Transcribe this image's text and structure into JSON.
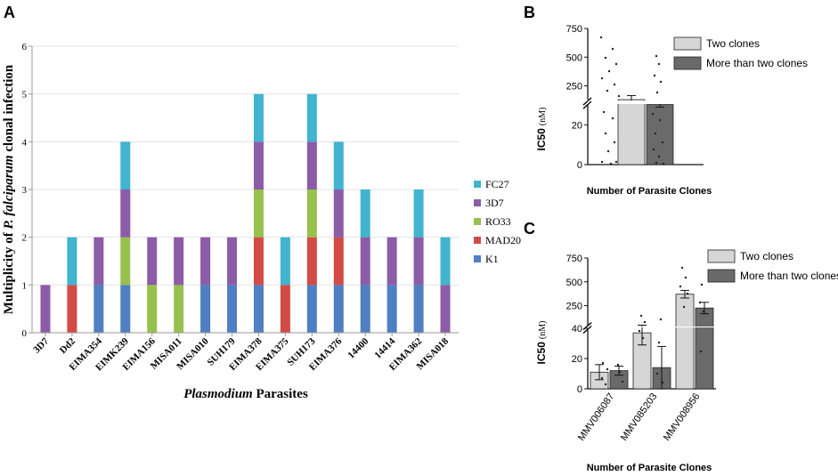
{
  "colors": {
    "K1": "#4f7fc3",
    "MAD20": "#d24b45",
    "RO33": "#98c04f",
    "3D7": "#8c5ca8",
    "FC27": "#41b4ce",
    "two_clones": "#d6d6d6",
    "more_clones": "#6a6a6a"
  },
  "chart_data": [
    {
      "panel": "A",
      "type": "bar",
      "stacked": true,
      "ylabel_parts": [
        "Multiplicity of ",
        "P. falciparum",
        " clonal infection"
      ],
      "xlabel_parts": [
        "Plasmodium",
        " Parasites"
      ],
      "ylim": [
        0,
        6
      ],
      "yticks": [
        "0",
        "1",
        "2",
        "3",
        "4",
        "5",
        "6"
      ],
      "categories": [
        "3D7",
        "Dd2",
        "EIMA354",
        "EIMK239",
        "EIMA156",
        "MISA011",
        "MISA010",
        "SUH179",
        "EIMA378",
        "EIMA375",
        "SUH173",
        "EIMA376",
        "14400",
        "14414",
        "EIMA362",
        "MISA018"
      ],
      "series": [
        {
          "name": "K1",
          "values": [
            0,
            0,
            1,
            1,
            0,
            0,
            1,
            1,
            1,
            0,
            1,
            1,
            1,
            1,
            1,
            0
          ]
        },
        {
          "name": "MAD20",
          "values": [
            0,
            1,
            0,
            0,
            0,
            0,
            0,
            0,
            1,
            1,
            1,
            1,
            0,
            0,
            0,
            0
          ]
        },
        {
          "name": "RO33",
          "values": [
            0,
            0,
            0,
            1,
            1,
            1,
            0,
            0,
            1,
            0,
            1,
            0,
            0,
            0,
            0,
            0
          ]
        },
        {
          "name": "3D7",
          "values": [
            1,
            0,
            1,
            1,
            1,
            1,
            1,
            1,
            1,
            0,
            1,
            1,
            1,
            1,
            1,
            1
          ]
        },
        {
          "name": "FC27",
          "values": [
            0,
            1,
            0,
            1,
            0,
            0,
            0,
            0,
            1,
            1,
            1,
            1,
            1,
            0,
            1,
            1
          ]
        }
      ],
      "legend": [
        "FC27",
        "3D7",
        "RO33",
        "MAD20",
        "K1"
      ]
    },
    {
      "panel": "B",
      "type": "bar",
      "ylabel": "IC50",
      "ylabel_unit": "(nM)",
      "xlabel": "Number of Parasite Clones",
      "axis_break": true,
      "lower_yticks": [
        "0",
        "20"
      ],
      "upper_yticks": [
        "250",
        "500",
        "750"
      ],
      "series": [
        {
          "name": "Two clones",
          "value": 130,
          "error": 35
        },
        {
          "name": "More than two clones",
          "value": 90,
          "error": 25
        }
      ],
      "legend": [
        "Two clones",
        "More than two clones"
      ]
    },
    {
      "panel": "C",
      "type": "bar",
      "ylabel": "IC50",
      "ylabel_unit": "(nM)",
      "xlabel": "Number of Parasite Clones",
      "axis_break": true,
      "lower_yticks": [
        "0",
        "20",
        "40"
      ],
      "upper_yticks": [
        "250",
        "500",
        "750"
      ],
      "categories": [
        "MMV006087",
        "MMV085203",
        "MMV008956"
      ],
      "series": [
        {
          "name": "Two clones",
          "values": [
            11,
            37,
            370
          ],
          "errors": [
            5,
            8,
            40
          ]
        },
        {
          "name": "More than two clones",
          "values": [
            12,
            14,
            225
          ],
          "errors": [
            3,
            14,
            60
          ]
        }
      ],
      "legend": [
        "Two clones",
        "More than two clones"
      ]
    }
  ]
}
